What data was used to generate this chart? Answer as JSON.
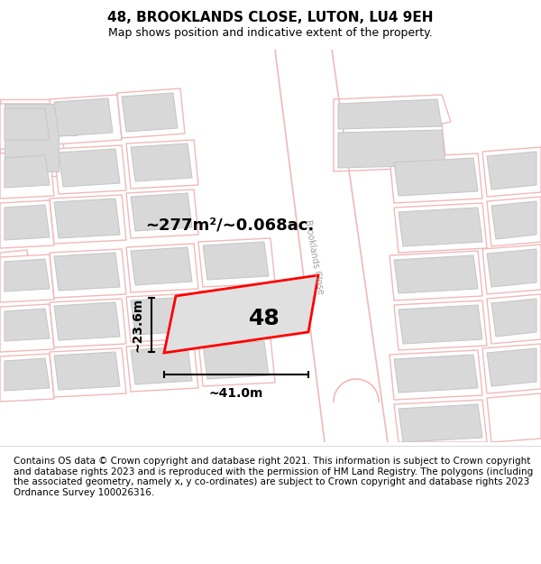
{
  "title": "48, BROOKLANDS CLOSE, LUTON, LU4 9EH",
  "subtitle": "Map shows position and indicative extent of the property.",
  "footer": "Contains OS data © Crown copyright and database right 2021. This information is subject to Crown copyright and database rights 2023 and is reproduced with the permission of HM Land Registry. The polygons (including the associated geometry, namely x, y co-ordinates) are subject to Crown copyright and database rights 2023 Ordnance Survey 100026316.",
  "area_label": "~277m²/~0.068ac.",
  "width_label": "~41.0m",
  "height_label": "~23.6m",
  "number_label": "48",
  "map_bg": "#ffffff",
  "road_color": "#f2b8b8",
  "plot_outline_color": "#e8a0a0",
  "building_fill": "#d8d8d8",
  "building_stroke": "#c8c8c8",
  "highlight_fill": "#e0e0e0",
  "highlight_stroke": "#ff0000",
  "road_label_color": "#a0a0a0",
  "title_fontsize": 11,
  "subtitle_fontsize": 9,
  "footer_fontsize": 7.5,
  "dim_label_fontsize": 10,
  "area_label_fontsize": 13,
  "number_fontsize": 18
}
